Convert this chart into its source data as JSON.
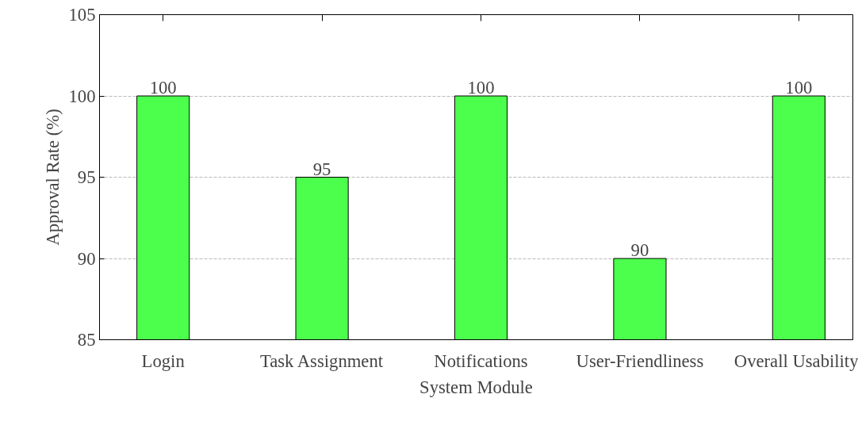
{
  "chart_data": {
    "type": "bar",
    "xlabel": "System Module",
    "ylabel": "Approval Rate (%)",
    "categories": [
      "Login",
      "Task Assignment",
      "Notifications",
      "User-Friendliness",
      "Overall Usability"
    ],
    "values": [
      100,
      95,
      100,
      90,
      100
    ],
    "color": "#4dff4d",
    "ylim": [
      85,
      105
    ],
    "yticks": [
      85,
      90,
      95,
      100,
      105
    ],
    "grid": "y",
    "data_labels": true
  }
}
